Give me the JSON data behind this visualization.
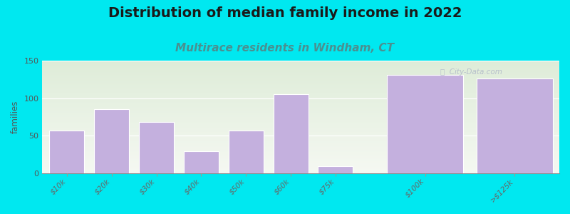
{
  "title": "Distribution of median family income in 2022",
  "subtitle": "Multirace residents in Windham, CT",
  "categories": [
    "$10k",
    "$20k",
    "$30k",
    "$40k",
    "$50k",
    "$60k",
    "$75k",
    "$100k",
    ">$125k"
  ],
  "values": [
    57,
    86,
    68,
    30,
    57,
    105,
    10,
    131,
    126
  ],
  "bar_color": "#c4b0de",
  "bar_edge_color": "#ffffff",
  "background_color": "#00e8f0",
  "plot_bg_gradient_top": "#deecd8",
  "plot_bg_gradient_bottom": "#f5f8f2",
  "title_fontsize": 14,
  "subtitle_fontsize": 11,
  "subtitle_color": "#4a9090",
  "ylabel": "families",
  "ylim": [
    0,
    150
  ],
  "yticks": [
    0,
    50,
    100,
    150
  ],
  "watermark": "ⓘ  City-Data.com",
  "watermark_color": "#b0b8c8"
}
